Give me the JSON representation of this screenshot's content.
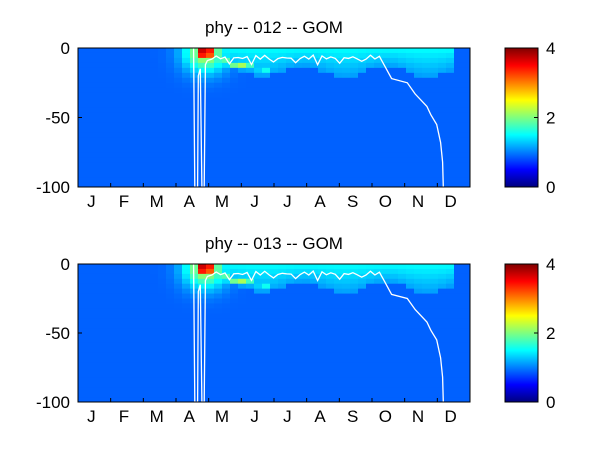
{
  "colors": {
    "background": "#ffffff",
    "frame": "#000000",
    "isoline": "#ffffff",
    "jet_stops": [
      "#00007f",
      "#0000ff",
      "#007fff",
      "#00ffff",
      "#7fff7f",
      "#ffff00",
      "#ff7f00",
      "#ff0000",
      "#7f0000"
    ]
  },
  "chart_data": [
    {
      "type": "heatmap",
      "title": "phy -- 012 -- GOM",
      "xlabel": "",
      "ylabel": "",
      "x_tick_labels": [
        "J",
        "F",
        "M",
        "A",
        "M",
        "J",
        "J",
        "A",
        "S",
        "O",
        "N",
        "D"
      ],
      "y_ticks": [
        0,
        -50,
        -100
      ],
      "y_tick_labels": [
        "0",
        "-50",
        "-100"
      ],
      "ylim": [
        -100,
        0
      ],
      "colorbar": {
        "ticks": [
          0,
          2,
          4
        ],
        "tick_labels": [
          "0",
          "2",
          "4"
        ],
        "range": [
          0,
          4
        ],
        "colormap": "jet"
      }
    },
    {
      "type": "heatmap",
      "title": "phy -- 013 -- GOM",
      "xlabel": "",
      "ylabel": "",
      "x_tick_labels": [
        "J",
        "F",
        "M",
        "A",
        "M",
        "J",
        "J",
        "A",
        "S",
        "O",
        "N",
        "D"
      ],
      "y_ticks": [
        0,
        -50,
        -100
      ],
      "y_tick_labels": [
        "0",
        "-50",
        "-100"
      ],
      "ylim": [
        -100,
        0
      ],
      "colorbar": {
        "ticks": [
          0,
          2,
          4
        ],
        "tick_labels": [
          "0",
          "2",
          "4"
        ],
        "range": [
          0,
          4
        ],
        "colormap": "jet"
      }
    }
  ]
}
